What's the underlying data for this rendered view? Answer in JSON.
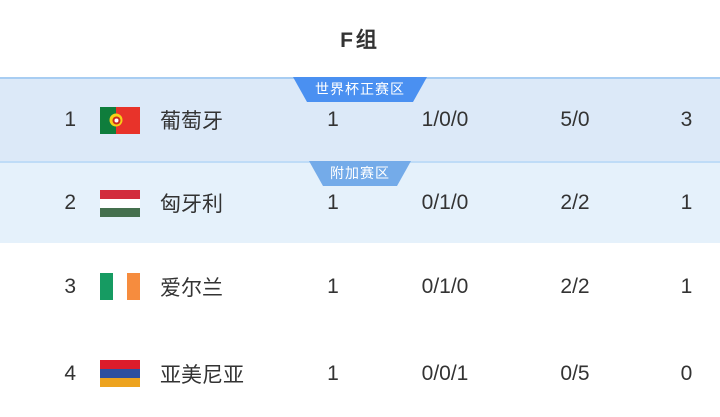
{
  "header": {
    "title": "F组"
  },
  "zones": [
    {
      "label": "世界杯正赛区",
      "color": "#4a90f1"
    },
    {
      "label": "附加赛区",
      "color": "#74abe9"
    }
  ],
  "standings": [
    {
      "rank": "1",
      "team": "葡萄牙",
      "flag": "portugal",
      "played": "1",
      "win_draw_loss": "1/0/0",
      "goals_for_against": "5/0",
      "points": "3",
      "zone": "世界杯正赛区",
      "row_highlight": "#dce9f8"
    },
    {
      "rank": "2",
      "team": "匈牙利",
      "flag": "hungary",
      "played": "1",
      "win_draw_loss": "0/1/0",
      "goals_for_against": "2/2",
      "points": "1",
      "zone": "附加赛区",
      "row_highlight": "#e5f1fb"
    },
    {
      "rank": "3",
      "team": "爱尔兰",
      "flag": "ireland",
      "played": "1",
      "win_draw_loss": "0/1/0",
      "goals_for_against": "2/2",
      "points": "1"
    },
    {
      "rank": "4",
      "team": "亚美尼亚",
      "flag": "armenia",
      "played": "1",
      "win_draw_loss": "0/0/1",
      "goals_for_against": "0/5",
      "points": "0"
    }
  ],
  "colors": {
    "text": "#333333",
    "badge_primary": "#4a90f1",
    "badge_secondary": "#74abe9",
    "row1_background": "#dce9f8",
    "row2_background": "#e5f1fb",
    "divider_row1": "#a8cdf2",
    "divider_row2": "#bfdcf7"
  }
}
